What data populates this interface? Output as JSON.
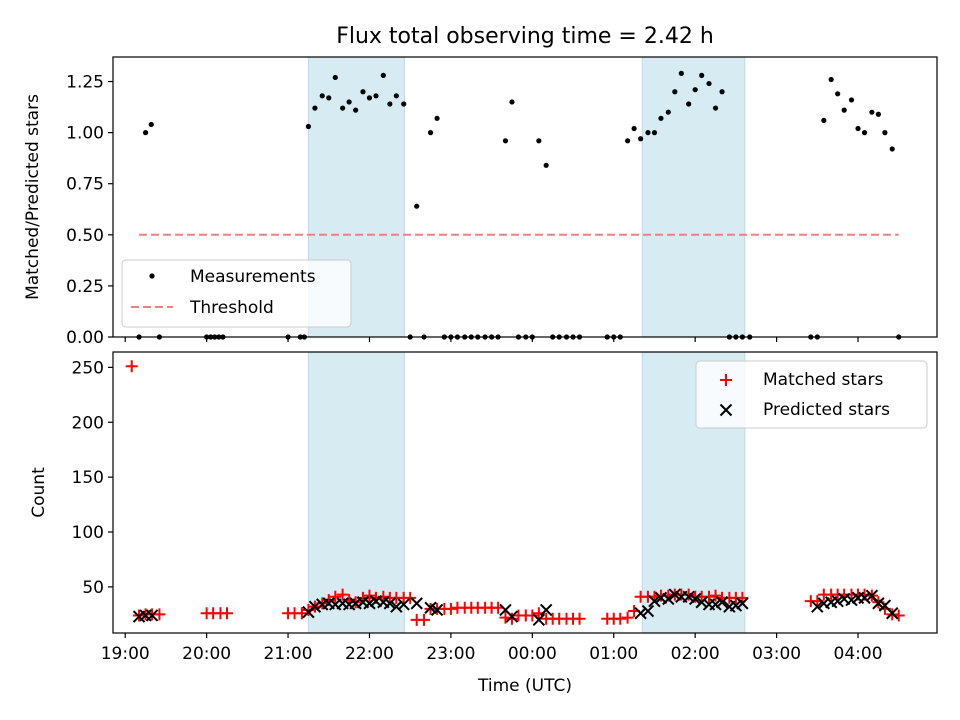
{
  "title": "Flux total observing time = 2.42 h",
  "chart_data": [
    {
      "type": "scatter",
      "panel": "top",
      "ylabel": "Matched/Predicted stars",
      "xlabel": "",
      "ylim": [
        0,
        1.37
      ],
      "yticks": [
        0,
        0.25,
        0.5,
        0.75,
        1.0,
        1.25
      ],
      "ytick_labels": [
        "0.00",
        "0.25",
        "0.50",
        "0.75",
        "1.00",
        "1.25"
      ],
      "legend": {
        "position": "lower-left",
        "entries": [
          "Measurements",
          "Threshold"
        ]
      },
      "threshold": {
        "name": "Threshold",
        "y": 0.5,
        "x_start_hours": 19.17,
        "x_end_hours": 28.5,
        "color": "#f08080"
      },
      "series": [
        {
          "name": "Measurements",
          "x_hours": [
            19.17,
            19.25,
            19.32,
            19.42,
            20.0,
            20.05,
            20.1,
            20.15,
            20.2,
            21.0,
            21.15,
            21.2,
            21.25,
            21.33,
            21.42,
            21.5,
            21.58,
            21.67,
            21.75,
            21.83,
            21.92,
            22.0,
            22.08,
            22.17,
            22.25,
            22.33,
            22.42,
            22.5,
            22.58,
            22.67,
            22.75,
            22.83,
            22.92,
            23.0,
            23.08,
            23.17,
            23.25,
            23.33,
            23.42,
            23.5,
            23.58,
            23.67,
            23.75,
            23.83,
            23.92,
            24.0,
            24.08,
            24.17,
            24.25,
            24.33,
            24.42,
            24.5,
            24.58,
            24.92,
            25.0,
            25.08,
            25.17,
            25.25,
            25.33,
            25.42,
            25.5,
            25.58,
            25.67,
            25.75,
            25.83,
            25.92,
            26.0,
            26.08,
            26.17,
            26.25,
            26.33,
            26.42,
            26.5,
            26.58,
            26.67,
            27.42,
            27.5,
            27.58,
            27.67,
            27.75,
            27.83,
            27.92,
            28.0,
            28.08,
            28.17,
            28.25,
            28.33,
            28.42,
            28.5
          ],
          "y": [
            0.0,
            1.0,
            1.04,
            0.0,
            0.0,
            0.0,
            0.0,
            0.0,
            0.0,
            0.0,
            0.0,
            0.0,
            1.03,
            1.12,
            1.18,
            1.17,
            1.27,
            1.12,
            1.15,
            1.11,
            1.2,
            1.17,
            1.18,
            1.28,
            1.14,
            1.18,
            1.14,
            0.0,
            0.64,
            0.0,
            1.0,
            1.07,
            0.0,
            0.0,
            0.0,
            0.0,
            0.0,
            0.0,
            0.0,
            0.0,
            0.0,
            0.96,
            1.15,
            0.0,
            0.0,
            0.0,
            0.96,
            0.84,
            0.0,
            0.0,
            0.0,
            0.0,
            0.0,
            0.0,
            0.0,
            0.0,
            0.96,
            1.02,
            0.97,
            1.0,
            1.0,
            1.07,
            1.1,
            1.2,
            1.29,
            1.14,
            1.21,
            1.28,
            1.24,
            1.12,
            1.2,
            0.0,
            0.0,
            0.0,
            0.0,
            0.0,
            0.0,
            1.06,
            1.26,
            1.19,
            1.11,
            1.16,
            1.02,
            1.0,
            1.1,
            1.09,
            1.0,
            0.92,
            0.0
          ]
        }
      ]
    },
    {
      "type": "scatter",
      "panel": "bottom",
      "ylabel": "Count",
      "xlabel": "Time (UTC)",
      "ylim": [
        8,
        264
      ],
      "yticks": [
        50,
        100,
        150,
        200,
        250
      ],
      "ytick_labels": [
        "50",
        "100",
        "150",
        "200",
        "250"
      ],
      "legend": {
        "position": "upper-right",
        "entries": [
          "Matched stars",
          "Predicted stars"
        ]
      },
      "series": [
        {
          "name": "Matched stars",
          "marker": "plus",
          "color": "#ff0000",
          "x_hours": [
            19.08,
            19.17,
            19.25,
            19.33,
            19.42,
            20.0,
            20.08,
            20.17,
            20.25,
            21.0,
            21.08,
            21.17,
            21.25,
            21.33,
            21.42,
            21.5,
            21.58,
            21.67,
            21.75,
            21.83,
            21.92,
            22.0,
            22.08,
            22.17,
            22.25,
            22.33,
            22.42,
            22.5,
            22.58,
            22.67,
            22.75,
            22.83,
            22.92,
            23.0,
            23.08,
            23.17,
            23.25,
            23.33,
            23.42,
            23.5,
            23.58,
            23.67,
            23.75,
            23.83,
            23.92,
            24.0,
            24.08,
            24.17,
            24.25,
            24.33,
            24.42,
            24.5,
            24.58,
            24.92,
            25.0,
            25.08,
            25.17,
            25.25,
            25.33,
            25.42,
            25.5,
            25.58,
            25.67,
            25.75,
            25.83,
            25.92,
            26.0,
            26.08,
            26.17,
            26.25,
            26.33,
            26.42,
            26.5,
            26.58,
            27.42,
            27.5,
            27.58,
            27.67,
            27.75,
            27.83,
            27.92,
            28.0,
            28.08,
            28.17,
            28.25,
            28.33,
            28.42,
            28.5
          ],
          "y": [
            251,
            24,
            25,
            25,
            25,
            26,
            26,
            26,
            26,
            26,
            26,
            26,
            29,
            32,
            35,
            38,
            41,
            43,
            38,
            36,
            40,
            42,
            40,
            41,
            40,
            40,
            40,
            40,
            20,
            20,
            30,
            30,
            30,
            30,
            31,
            31,
            31,
            31,
            31,
            31,
            31,
            22,
            21,
            24,
            24,
            24,
            26,
            21,
            21,
            21,
            21,
            21,
            21,
            21,
            21,
            21,
            22,
            28,
            41,
            41,
            41,
            42,
            42,
            43,
            43,
            43,
            41,
            41,
            41,
            42,
            40,
            40,
            40,
            40,
            37,
            37,
            43,
            43,
            43,
            43,
            43,
            43,
            43,
            42,
            36,
            30,
            25,
            24
          ]
        },
        {
          "name": "Predicted stars",
          "marker": "x",
          "color": "#000000",
          "x_hours": [
            19.17,
            19.25,
            19.33,
            21.25,
            21.33,
            21.42,
            21.5,
            21.58,
            21.67,
            21.75,
            21.83,
            21.92,
            22.0,
            22.08,
            22.17,
            22.25,
            22.33,
            22.42,
            22.58,
            22.75,
            22.83,
            23.67,
            23.75,
            24.08,
            24.17,
            25.33,
            25.42,
            25.5,
            25.58,
            25.67,
            25.75,
            25.83,
            25.92,
            26.0,
            26.08,
            26.17,
            26.25,
            26.33,
            26.42,
            26.5,
            26.58,
            27.5,
            27.58,
            27.67,
            27.75,
            27.83,
            27.92,
            28.0,
            28.08,
            28.17,
            28.25,
            28.33,
            28.42
          ],
          "y": [
            23,
            24,
            24,
            27,
            32,
            34,
            35,
            34,
            35,
            34,
            35,
            36,
            35,
            37,
            36,
            35,
            32,
            34,
            35,
            31,
            29,
            29,
            23,
            20,
            29,
            26,
            28,
            37,
            40,
            39,
            43,
            41,
            41,
            39,
            36,
            34,
            34,
            36,
            32,
            33,
            35,
            32,
            35,
            36,
            37,
            39,
            38,
            40,
            40,
            42,
            35,
            33,
            26
          ]
        }
      ]
    }
  ],
  "shared": {
    "x_range_hours": [
      18.85,
      28.97
    ],
    "xticks_hours": [
      19,
      20,
      21,
      22,
      23,
      24,
      25,
      26,
      27,
      28
    ],
    "xtick_labels": [
      "19:00",
      "20:00",
      "21:00",
      "22:00",
      "23:00",
      "00:00",
      "01:00",
      "02:00",
      "03:00",
      "04:00"
    ],
    "shaded_intervals_hours": [
      [
        21.25,
        22.43
      ],
      [
        25.35,
        26.61
      ]
    ],
    "shade_color": "#add8e6"
  }
}
